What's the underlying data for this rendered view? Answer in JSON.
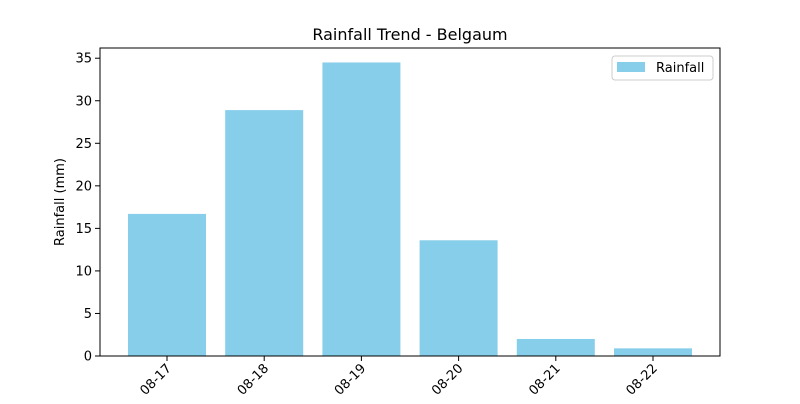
{
  "chart_data": {
    "type": "bar",
    "title": "Rainfall Trend - Belgaum",
    "xlabel": "",
    "ylabel": "Rainfall (mm)",
    "categories": [
      "08-17",
      "08-18",
      "08-19",
      "08-20",
      "08-21",
      "08-22"
    ],
    "series": [
      {
        "name": "Rainfall",
        "values": [
          16.7,
          28.9,
          34.5,
          13.6,
          2.0,
          0.9
        ],
        "color": "#87CEEB"
      }
    ],
    "ylim": [
      0,
      36.2
    ],
    "yticks": [
      0,
      5,
      10,
      15,
      20,
      25,
      30,
      35
    ],
    "grid": false,
    "legend_position": "top-right"
  }
}
